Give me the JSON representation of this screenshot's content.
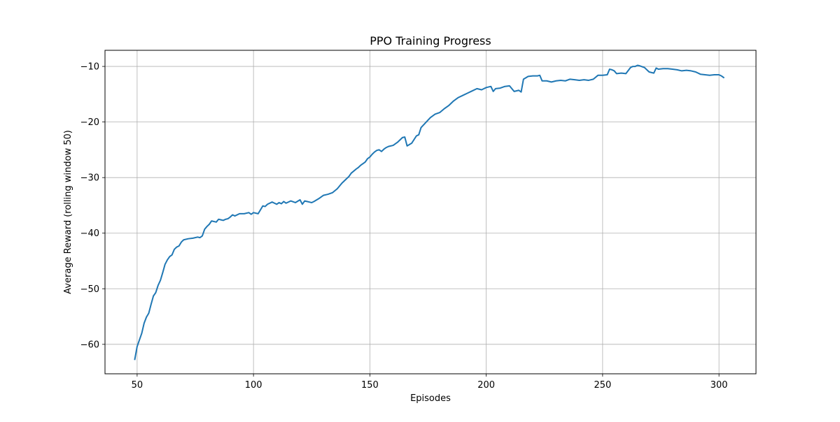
{
  "figure": {
    "title": "PPO Training Progress"
  },
  "chart_data": {
    "type": "line",
    "title": "PPO Training Progress",
    "xlabel": "Episodes",
    "ylabel": "Average Reward (rolling window 50)",
    "xlim": [
      36.2,
      315.9
    ],
    "ylim": [
      -65.3,
      -7.1
    ],
    "grid": true,
    "xticks": [
      50,
      100,
      150,
      200,
      250,
      300
    ],
    "yticks": [
      -60,
      -50,
      -40,
      -30,
      -20,
      -10
    ],
    "series": [
      {
        "color": "#1f77b4",
        "x": [
          49,
          50,
          51,
          52,
          53,
          54,
          55,
          56,
          57,
          58,
          59,
          60,
          61,
          62,
          63,
          64,
          65,
          66,
          67,
          68,
          69,
          70,
          72,
          74,
          76,
          77,
          78,
          79,
          80,
          81,
          82,
          84,
          85,
          86,
          87,
          88,
          89,
          90,
          91,
          92,
          94,
          96,
          98,
          99,
          100,
          102,
          104,
          105,
          106,
          108,
          110,
          111,
          112,
          113,
          114,
          116,
          118,
          120,
          121,
          122,
          123,
          124,
          125,
          126,
          128,
          130,
          132,
          134,
          136,
          138,
          140,
          141,
          142,
          144,
          145,
          146,
          147,
          148,
          149,
          150,
          151,
          152,
          153,
          154,
          155,
          156,
          157,
          158,
          160,
          162,
          164,
          165,
          166,
          168,
          170,
          171,
          172,
          174,
          176,
          178,
          180,
          182,
          184,
          186,
          188,
          190,
          192,
          194,
          196,
          198,
          200,
          202,
          203,
          204,
          206,
          208,
          210,
          212,
          214,
          215,
          216,
          218,
          220,
          222,
          223,
          224,
          226,
          228,
          230,
          232,
          234,
          236,
          238,
          240,
          242,
          244,
          246,
          248,
          250,
          252,
          253,
          254,
          255,
          256,
          258,
          260,
          262,
          263,
          264,
          265,
          266,
          268,
          270,
          272,
          273,
          274,
          276,
          278,
          280,
          282,
          284,
          286,
          288,
          290,
          292,
          294,
          296,
          298,
          300,
          301,
          302
        ],
        "y": [
          -62.7,
          -60.4,
          -59.2,
          -58.0,
          -56.2,
          -55.1,
          -54.4,
          -52.8,
          -51.3,
          -50.7,
          -49.4,
          -48.5,
          -47.1,
          -45.6,
          -44.8,
          -44.2,
          -43.9,
          -42.9,
          -42.5,
          -42.3,
          -41.6,
          -41.2,
          -41.0,
          -40.9,
          -40.7,
          -40.8,
          -40.5,
          -39.3,
          -38.8,
          -38.4,
          -37.8,
          -38.0,
          -37.5,
          -37.6,
          -37.7,
          -37.5,
          -37.4,
          -37.1,
          -36.7,
          -36.9,
          -36.5,
          -36.5,
          -36.3,
          -36.6,
          -36.3,
          -36.5,
          -35.1,
          -35.2,
          -34.8,
          -34.4,
          -34.8,
          -34.5,
          -34.7,
          -34.3,
          -34.6,
          -34.2,
          -34.5,
          -34.0,
          -34.8,
          -34.2,
          -34.3,
          -34.4,
          -34.5,
          -34.3,
          -33.8,
          -33.2,
          -33.0,
          -32.7,
          -32.0,
          -31.0,
          -30.2,
          -29.8,
          -29.2,
          -28.5,
          -28.2,
          -27.8,
          -27.5,
          -27.2,
          -26.6,
          -26.3,
          -25.8,
          -25.4,
          -25.1,
          -25.0,
          -25.3,
          -24.9,
          -24.6,
          -24.4,
          -24.2,
          -23.6,
          -22.8,
          -22.7,
          -24.3,
          -23.8,
          -22.5,
          -22.3,
          -21.0,
          -20.1,
          -19.2,
          -18.6,
          -18.3,
          -17.6,
          -17.0,
          -16.2,
          -15.6,
          -15.2,
          -14.8,
          -14.4,
          -14.0,
          -14.2,
          -13.8,
          -13.6,
          -14.5,
          -14.0,
          -13.9,
          -13.6,
          -13.5,
          -14.5,
          -14.3,
          -14.6,
          -12.3,
          -11.8,
          -11.7,
          -11.7,
          -11.6,
          -12.6,
          -12.6,
          -12.8,
          -12.6,
          -12.5,
          -12.6,
          -12.3,
          -12.4,
          -12.5,
          -12.4,
          -12.5,
          -12.3,
          -11.6,
          -11.6,
          -11.5,
          -10.5,
          -10.6,
          -10.8,
          -11.3,
          -11.2,
          -11.3,
          -10.2,
          -10.0,
          -10.0,
          -9.8,
          -9.9,
          -10.2,
          -11.0,
          -11.2,
          -10.3,
          -10.5,
          -10.4,
          -10.4,
          -10.5,
          -10.6,
          -10.8,
          -10.7,
          -10.8,
          -11.0,
          -11.4,
          -11.5,
          -11.6,
          -11.5,
          -11.5,
          -11.7,
          -12.0
        ]
      }
    ]
  }
}
